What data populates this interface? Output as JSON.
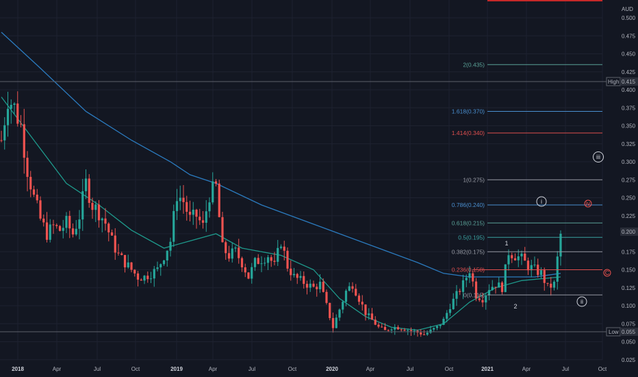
{
  "currency": "AUD",
  "price_tags": {
    "high": {
      "label": "High",
      "value": "0.415"
    },
    "current": {
      "value": "0.200"
    },
    "low": {
      "label": "Low",
      "value": "0.055"
    }
  },
  "colors": {
    "background": "#131722",
    "grid": "#1e2230",
    "up": "#26a69a",
    "down": "#ef5350",
    "ma_long": "#2b7bbf",
    "ma_short": "#1e9a8c"
  },
  "fib_levels": [
    {
      "label": "2(0.435)",
      "value": 0.435,
      "color": "#5aa197"
    },
    {
      "label": "1.618(0.370)",
      "value": 0.37,
      "color": "#4a8fd0"
    },
    {
      "label": "1.414(0.340)",
      "value": 0.34,
      "color": "#e04f4f"
    },
    {
      "label": "1(0.275)",
      "value": 0.275,
      "color": "#9598a1"
    },
    {
      "label": "0.786(0.240)",
      "value": 0.24,
      "color": "#4a8fd0"
    },
    {
      "label": "0.618(0.215)",
      "value": 0.215,
      "color": "#5aa197"
    },
    {
      "label": "0.5(0.195)",
      "value": 0.195,
      "color": "#3aa0a0"
    },
    {
      "label": "0.382(0.175)",
      "value": 0.175,
      "color": "#9598a1"
    },
    {
      "label": "0.236(0.150)",
      "value": 0.15,
      "color": "#e04f4f"
    },
    {
      "label": "0(0.115)",
      "value": 0.115,
      "color": "#9598a1"
    }
  ],
  "wave_labels": [
    "iii",
    "i",
    "iv",
    "C",
    "1",
    "2",
    "ii"
  ],
  "chart_data": {
    "type": "candlestick",
    "x_unit": "weeks since Jan 2018",
    "y_scale": "linear",
    "ylim": [
      0.02,
      0.52
    ],
    "y_ticks": [
      0.025,
      0.05,
      0.075,
      0.1,
      0.125,
      0.15,
      0.175,
      0.2,
      0.225,
      0.25,
      0.275,
      0.3,
      0.325,
      0.35,
      0.375,
      0.4,
      0.425,
      0.45,
      0.475,
      0.5
    ],
    "y_tick_labels": [
      "0.025",
      "0.050",
      "0.075",
      "0.100",
      "0.125",
      "0.150",
      "0.175",
      "0.200",
      "0.225",
      "0.250",
      "0.275",
      "0.300",
      "0.325",
      "0.350",
      "0.375",
      "0.400",
      "0.425",
      "0.450",
      "0.475",
      "0.500"
    ],
    "x_ticks": [
      {
        "label": "2018",
        "year": true
      },
      {
        "label": "Apr",
        "year": false
      },
      {
        "label": "Jul",
        "year": false
      },
      {
        "label": "Oct",
        "year": false
      },
      {
        "label": "2019",
        "year": true
      },
      {
        "label": "Apr",
        "year": false
      },
      {
        "label": "Jul",
        "year": false
      },
      {
        "label": "Oct",
        "year": false
      },
      {
        "label": "2020",
        "year": true
      },
      {
        "label": "Apr",
        "year": false
      },
      {
        "label": "Jul",
        "year": false
      },
      {
        "label": "Oct",
        "year": false
      },
      {
        "label": "2021",
        "year": true
      },
      {
        "label": "Apr",
        "year": false
      },
      {
        "label": "Jul",
        "year": false
      },
      {
        "label": "Oct",
        "year": false
      }
    ],
    "close_path": [
      [
        0,
        0.33
      ],
      [
        2,
        0.39
      ],
      [
        4,
        0.375
      ],
      [
        6,
        0.35
      ],
      [
        8,
        0.29
      ],
      [
        10,
        0.25
      ],
      [
        12,
        0.22
      ],
      [
        14,
        0.2
      ],
      [
        16,
        0.21
      ],
      [
        18,
        0.205
      ],
      [
        20,
        0.215
      ],
      [
        22,
        0.2
      ],
      [
        24,
        0.225
      ],
      [
        26,
        0.27
      ],
      [
        28,
        0.24
      ],
      [
        30,
        0.23
      ],
      [
        32,
        0.215
      ],
      [
        34,
        0.19
      ],
      [
        36,
        0.17
      ],
      [
        38,
        0.16
      ],
      [
        40,
        0.15
      ],
      [
        42,
        0.14
      ],
      [
        44,
        0.14
      ],
      [
        46,
        0.145
      ],
      [
        48,
        0.15
      ],
      [
        50,
        0.17
      ],
      [
        52,
        0.19
      ],
      [
        54,
        0.255
      ],
      [
        56,
        0.245
      ],
      [
        58,
        0.22
      ],
      [
        60,
        0.225
      ],
      [
        62,
        0.21
      ],
      [
        64,
        0.255
      ],
      [
        66,
        0.265
      ],
      [
        68,
        0.18
      ],
      [
        70,
        0.17
      ],
      [
        72,
        0.175
      ],
      [
        74,
        0.16
      ],
      [
        76,
        0.14
      ],
      [
        78,
        0.16
      ],
      [
        80,
        0.165
      ],
      [
        82,
        0.17
      ],
      [
        84,
        0.155
      ],
      [
        86,
        0.19
      ],
      [
        88,
        0.155
      ],
      [
        90,
        0.14
      ],
      [
        92,
        0.135
      ],
      [
        94,
        0.13
      ],
      [
        96,
        0.125
      ],
      [
        98,
        0.13
      ],
      [
        100,
        0.1
      ],
      [
        102,
        0.07
      ],
      [
        104,
        0.095
      ],
      [
        106,
        0.12
      ],
      [
        108,
        0.13
      ],
      [
        110,
        0.11
      ],
      [
        112,
        0.09
      ],
      [
        114,
        0.08
      ],
      [
        116,
        0.07
      ],
      [
        118,
        0.065
      ],
      [
        120,
        0.07
      ],
      [
        122,
        0.07
      ],
      [
        124,
        0.068
      ],
      [
        126,
        0.065
      ],
      [
        128,
        0.063
      ],
      [
        130,
        0.06
      ],
      [
        132,
        0.065
      ],
      [
        134,
        0.07
      ],
      [
        136,
        0.08
      ],
      [
        138,
        0.1
      ],
      [
        140,
        0.115
      ],
      [
        142,
        0.13
      ],
      [
        144,
        0.15
      ],
      [
        146,
        0.115
      ],
      [
        148,
        0.11
      ],
      [
        150,
        0.125
      ],
      [
        152,
        0.13
      ],
      [
        154,
        0.125
      ],
      [
        156,
        0.175
      ],
      [
        158,
        0.17
      ],
      [
        160,
        0.165
      ],
      [
        162,
        0.155
      ],
      [
        164,
        0.15
      ],
      [
        166,
        0.145
      ],
      [
        168,
        0.125
      ],
      [
        170,
        0.13
      ],
      [
        172,
        0.2
      ]
    ],
    "x_range": [
      0,
      186
    ],
    "ma_long": [
      [
        0,
        0.48
      ],
      [
        12,
        0.43
      ],
      [
        26,
        0.37
      ],
      [
        40,
        0.33
      ],
      [
        52,
        0.3
      ],
      [
        58,
        0.282
      ],
      [
        66,
        0.27
      ],
      [
        80,
        0.24
      ],
      [
        92,
        0.22
      ],
      [
        104,
        0.2
      ],
      [
        116,
        0.18
      ],
      [
        128,
        0.16
      ],
      [
        136,
        0.145
      ],
      [
        144,
        0.14
      ],
      [
        156,
        0.14
      ],
      [
        164,
        0.14
      ],
      [
        172,
        0.145
      ]
    ],
    "ma_short": [
      [
        0,
        0.39
      ],
      [
        10,
        0.33
      ],
      [
        20,
        0.27
      ],
      [
        30,
        0.24
      ],
      [
        40,
        0.205
      ],
      [
        50,
        0.18
      ],
      [
        58,
        0.19
      ],
      [
        66,
        0.2
      ],
      [
        74,
        0.18
      ],
      [
        86,
        0.17
      ],
      [
        96,
        0.15
      ],
      [
        104,
        0.11
      ],
      [
        112,
        0.085
      ],
      [
        120,
        0.07
      ],
      [
        128,
        0.066
      ],
      [
        136,
        0.075
      ],
      [
        144,
        0.105
      ],
      [
        152,
        0.125
      ],
      [
        160,
        0.135
      ],
      [
        172,
        0.14
      ]
    ]
  }
}
